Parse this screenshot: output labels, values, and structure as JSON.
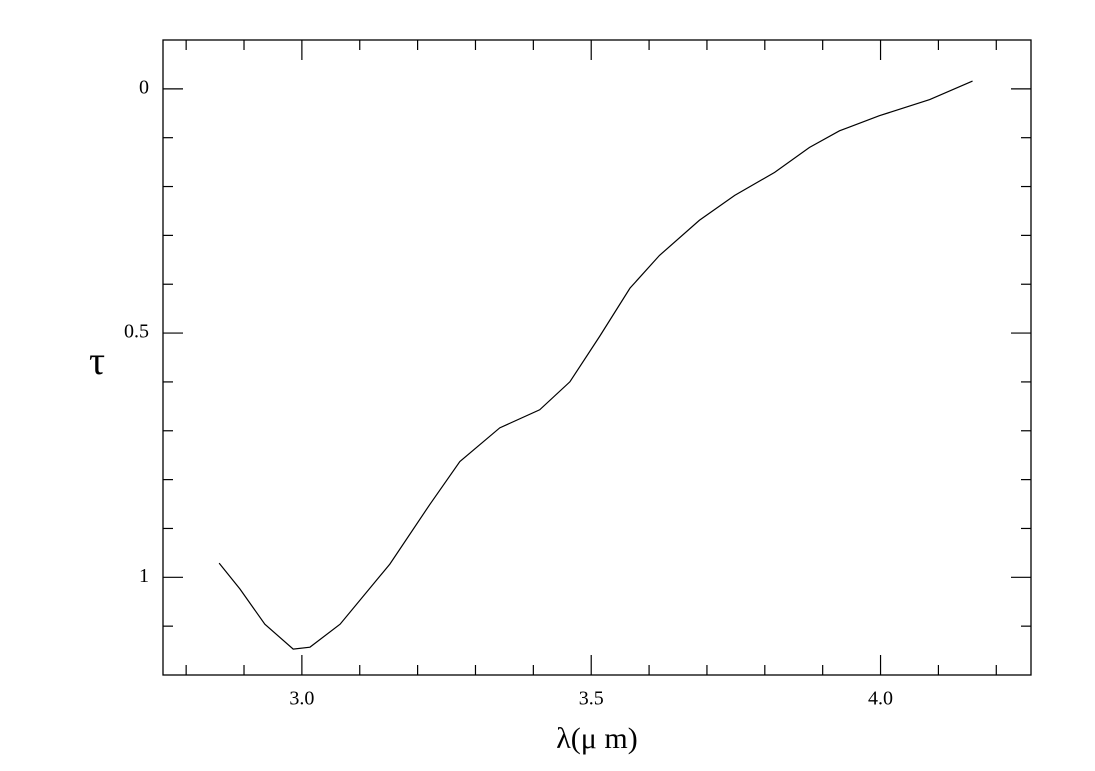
{
  "chart_data": {
    "type": "line",
    "xlabel": "λ(μ m)",
    "ylabel": "τ",
    "xlim": [
      2.76,
      4.26
    ],
    "ylim": [
      -0.1,
      1.2
    ],
    "y_inverted": true,
    "xticks": [
      {
        "value": 3,
        "label": "3.0"
      },
      {
        "value": 3.5,
        "label": "3.5"
      },
      {
        "value": 4,
        "label": "4.0"
      }
    ],
    "xticks_minor": [
      2.8,
      2.9,
      3.1,
      3.2,
      3.3,
      3.4,
      3.6,
      3.7,
      3.8,
      3.9,
      4.1,
      4.2
    ],
    "yticks": [
      0,
      0.5,
      1
    ],
    "yticks_minor": [
      0.1,
      0.2,
      0.3,
      0.4,
      0.6,
      0.7,
      0.8,
      0.9,
      1.1
    ],
    "ticks_on_all_sides": true,
    "grid": false,
    "x": [
      2.857,
      2.893,
      2.936,
      2.985,
      3.014,
      3.066,
      3.152,
      3.221,
      3.273,
      3.342,
      3.411,
      3.463,
      3.515,
      3.567,
      3.618,
      3.687,
      3.748,
      3.817,
      3.877,
      3.929,
      3.998,
      4.085,
      4.159
    ],
    "series": [
      {
        "color": "#000000",
        "values": [
          0.971,
          1.024,
          1.096,
          1.147,
          1.143,
          1.096,
          0.973,
          0.851,
          0.763,
          0.694,
          0.657,
          0.6,
          0.506,
          0.408,
          0.341,
          0.269,
          0.218,
          0.171,
          0.12,
          0.086,
          0.055,
          0.022,
          -0.016
        ]
      }
    ]
  }
}
